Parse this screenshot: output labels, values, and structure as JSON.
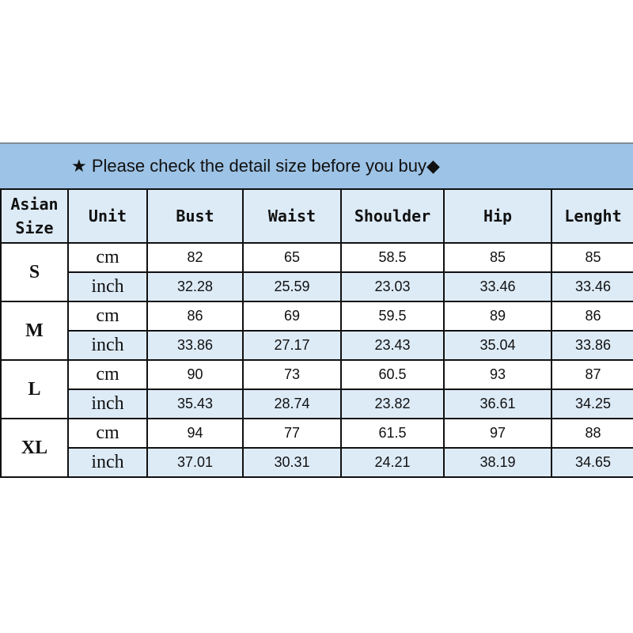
{
  "banner": {
    "star": "★",
    "text": "Please check the detail size before you buy",
    "diamond": "◆"
  },
  "headers": [
    "Asian Size",
    "Unit",
    "Bust",
    "Waist",
    "Shoulder",
    "Hip",
    "Lenght"
  ],
  "colors": {
    "banner": "#9dc3e6",
    "header_bg": "#ddebf7",
    "inch_row_bg": "#ddebf7"
  },
  "rows": [
    {
      "size": "S",
      "cm": {
        "unit": "cm",
        "values": [
          "82",
          "65",
          "58.5",
          "85",
          "85"
        ]
      },
      "inch": {
        "unit": "inch",
        "values": [
          "32.28",
          "25.59",
          "23.03",
          "33.46",
          "33.46"
        ]
      }
    },
    {
      "size": "M",
      "cm": {
        "unit": "cm",
        "values": [
          "86",
          "69",
          "59.5",
          "89",
          "86"
        ]
      },
      "inch": {
        "unit": "inch",
        "values": [
          "33.86",
          "27.17",
          "23.43",
          "35.04",
          "33.86"
        ]
      }
    },
    {
      "size": "L",
      "cm": {
        "unit": "cm",
        "values": [
          "90",
          "73",
          "60.5",
          "93",
          "87"
        ]
      },
      "inch": {
        "unit": "inch",
        "values": [
          "35.43",
          "28.74",
          "23.82",
          "36.61",
          "34.25"
        ]
      }
    },
    {
      "size": "XL",
      "cm": {
        "unit": "cm",
        "values": [
          "94",
          "77",
          "61.5",
          "97",
          "88"
        ]
      },
      "inch": {
        "unit": "inch",
        "values": [
          "37.01",
          "30.31",
          "24.21",
          "38.19",
          "34.65"
        ]
      }
    }
  ]
}
